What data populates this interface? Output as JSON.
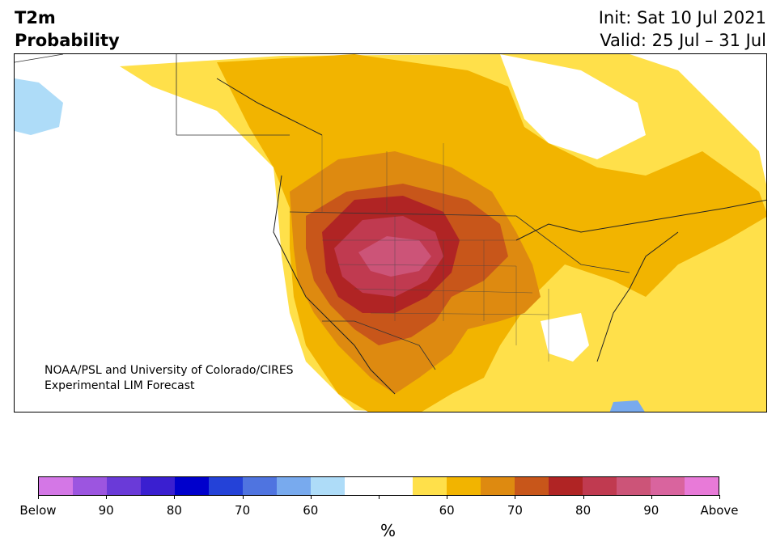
{
  "header": {
    "variable": "T2m",
    "product": "Probability",
    "init": "Init: Sat 10 Jul 2021",
    "valid": "Valid: 25 Jul – 31 Jul"
  },
  "map": {
    "credit_line1": "NOAA/PSL and University of Colorado/CIRES",
    "credit_line2": "Experimental LIM Forecast"
  },
  "colorbar": {
    "unit": "%",
    "colors": [
      "#d477e6",
      "#9c55e0",
      "#6a3ad8",
      "#3a1fd0",
      "#0000cc",
      "#2442d8",
      "#4f74e0",
      "#78aaee",
      "#aedcf8",
      "#ffffff",
      "#ffffff",
      "#ffe04a",
      "#f2b400",
      "#de8a10",
      "#c8561a",
      "#b02424",
      "#c03a50",
      "#cc5478",
      "#d9649e",
      "#e87ad8"
    ],
    "labels": [
      "Below",
      "90",
      "80",
      "70",
      "60",
      "60",
      "70",
      "80",
      "90",
      "Above"
    ]
  }
}
